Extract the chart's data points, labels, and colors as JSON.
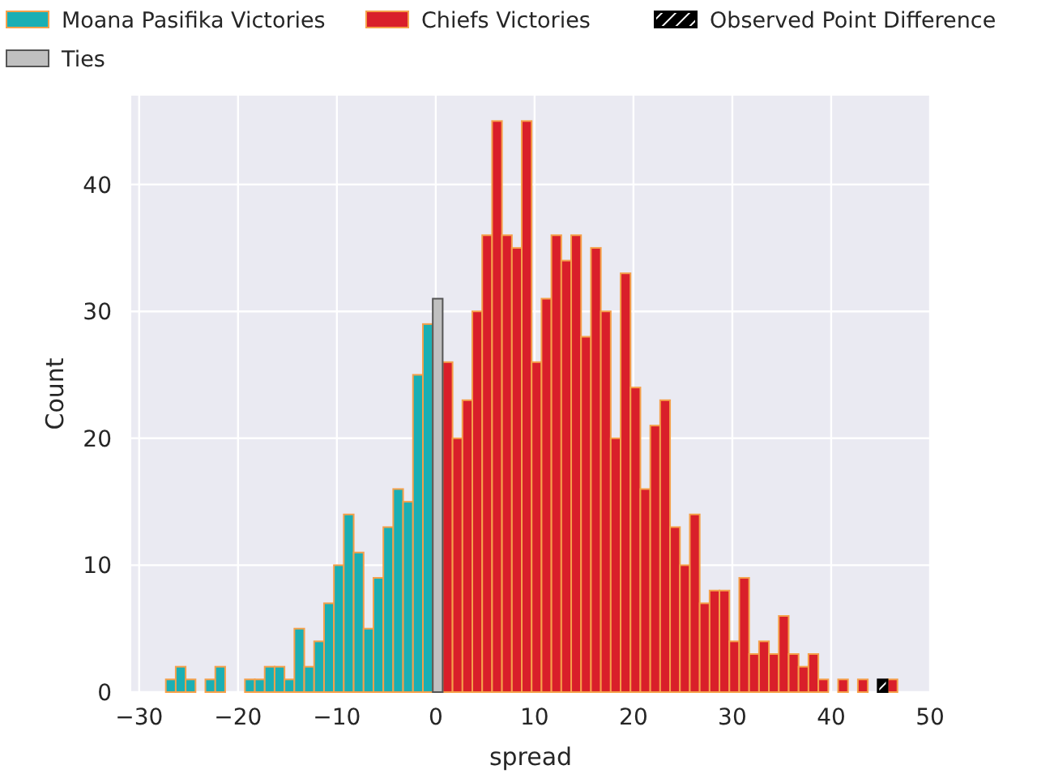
{
  "chart_data": {
    "type": "histogram",
    "xlabel": "spread",
    "ylabel": "Count",
    "bins": [
      -27.3,
      -26.3,
      -25.3,
      -24.3,
      -23.3,
      -22.3,
      -21.3,
      -20.3,
      -19.3,
      -18.3,
      -17.3,
      -16.3,
      -15.3,
      -14.3,
      -13.3,
      -12.3,
      -11.3,
      -10.3,
      -9.3,
      -8.3,
      -7.3,
      -6.3,
      -5.3,
      -4.3,
      -3.3,
      -2.3,
      -1.3,
      -0.3,
      0.7,
      1.7,
      2.7,
      3.7,
      4.7,
      5.7,
      6.7,
      7.7,
      8.7,
      9.7,
      10.7,
      11.7,
      12.7,
      13.7,
      14.7,
      15.7,
      16.7,
      17.7,
      18.7,
      19.7,
      20.7,
      21.7,
      22.7,
      23.7,
      24.7,
      25.7,
      26.7,
      27.7,
      28.7,
      29.7,
      30.7,
      31.7,
      32.7,
      33.7,
      34.7,
      35.7,
      36.7,
      37.7,
      38.7,
      39.7,
      40.7,
      41.7,
      42.7,
      43.7,
      44.7,
      45.7,
      46.7
    ],
    "series": [
      {
        "name": "Moana Pasifika Victories",
        "color": "#1aafb4",
        "values": [
          1,
          2,
          1,
          0,
          1,
          2,
          0,
          0,
          1,
          1,
          2,
          2,
          1,
          5,
          2,
          4,
          7,
          10,
          14,
          11,
          5,
          9,
          13,
          16,
          15,
          25,
          29,
          null,
          null,
          null,
          null,
          null,
          null,
          null,
          null,
          null,
          null,
          null,
          null,
          null,
          null,
          null,
          null,
          null,
          null,
          null,
          null,
          null,
          null,
          null,
          null,
          null,
          null,
          null,
          null,
          null,
          null,
          null,
          null,
          null,
          null,
          null,
          null,
          null,
          null,
          null,
          null,
          null,
          null,
          null,
          null,
          null,
          null,
          null
        ]
      },
      {
        "name": "Chiefs Victories",
        "color": "#d91f2a",
        "values": [
          null,
          null,
          null,
          null,
          null,
          null,
          null,
          null,
          null,
          null,
          null,
          null,
          null,
          null,
          null,
          null,
          null,
          null,
          null,
          null,
          null,
          null,
          null,
          null,
          null,
          null,
          null,
          null,
          26,
          20,
          23,
          30,
          36,
          45,
          36,
          35,
          45,
          26,
          31,
          36,
          34,
          36,
          28,
          35,
          30,
          20,
          33,
          24,
          16,
          21,
          23,
          13,
          10,
          14,
          7,
          8,
          8,
          4,
          9,
          3,
          4,
          3,
          6,
          3,
          2,
          3,
          1,
          0,
          1,
          0,
          1,
          0,
          0,
          1
        ]
      },
      {
        "name": "Observed Point Difference",
        "color": "#000000",
        "values": [
          null,
          null,
          null,
          null,
          null,
          null,
          null,
          null,
          null,
          null,
          null,
          null,
          null,
          null,
          null,
          null,
          null,
          null,
          null,
          null,
          null,
          null,
          null,
          null,
          null,
          null,
          null,
          null,
          null,
          null,
          null,
          null,
          null,
          null,
          null,
          null,
          null,
          null,
          null,
          null,
          null,
          null,
          null,
          null,
          null,
          null,
          null,
          null,
          null,
          null,
          null,
          null,
          null,
          null,
          null,
          null,
          null,
          null,
          null,
          null,
          null,
          null,
          null,
          null,
          null,
          null,
          null,
          null,
          null,
          null,
          null,
          null,
          1,
          null
        ]
      },
      {
        "name": "Ties",
        "color": "#c0c0c0",
        "values": [
          null,
          null,
          null,
          null,
          null,
          null,
          null,
          null,
          null,
          null,
          null,
          null,
          null,
          null,
          null,
          null,
          null,
          null,
          null,
          null,
          null,
          null,
          null,
          null,
          null,
          null,
          null,
          31,
          null,
          null,
          null,
          null,
          null,
          null,
          null,
          null,
          null,
          null,
          null,
          null,
          null,
          null,
          null,
          null,
          null,
          null,
          null,
          null,
          null,
          null,
          null,
          null,
          null,
          null,
          null,
          null,
          null,
          null,
          null,
          null,
          null,
          null,
          null,
          null,
          null,
          null,
          null,
          null,
          null,
          null,
          null,
          null,
          null,
          null
        ]
      }
    ],
    "xlim": [
      -30.8,
      50
    ],
    "xticks": [
      -30,
      -20,
      -10,
      0,
      10,
      20,
      30,
      40,
      50
    ],
    "ylim": [
      0,
      47
    ],
    "yticks": [
      0,
      10,
      20,
      30,
      40
    ],
    "grid": true,
    "legend": "top"
  }
}
